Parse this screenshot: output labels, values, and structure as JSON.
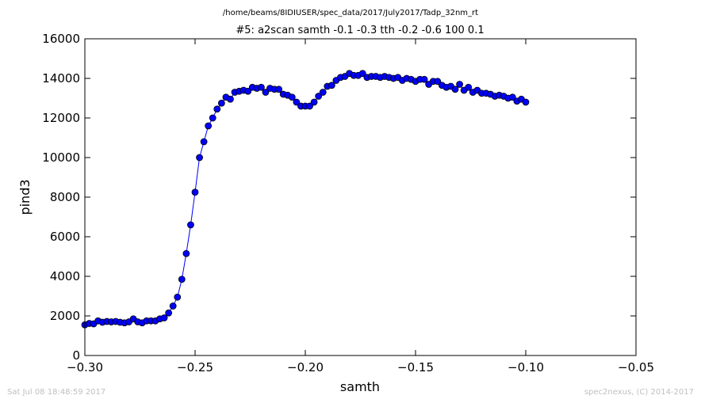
{
  "supertitle": "/home/beams/8IDIUSER/spec_data/2017/July2017/Tadp_32nm_rt",
  "footer_left": "Sat Jul 08 18:48:59 2017",
  "footer_right": "spec2nexus, (C) 2014-2017",
  "colors": {
    "series": "#0000ff",
    "axes": "#000000",
    "footer": "#bfbfbf"
  },
  "chart_data": {
    "type": "line",
    "title": "#5: a2scan  samth -0.1 -0.3  tth -0.2 -0.6  100 0.1",
    "xlabel": "samth",
    "ylabel": "pind3",
    "xlim": [
      -0.3,
      -0.05
    ],
    "ylim": [
      0,
      16000
    ],
    "xticks": [
      -0.3,
      -0.25,
      -0.2,
      -0.15,
      -0.1,
      -0.05
    ],
    "xtick_labels": [
      "−0.30",
      "−0.25",
      "−0.20",
      "−0.15",
      "−0.10",
      "−0.05"
    ],
    "yticks": [
      0,
      2000,
      4000,
      6000,
      8000,
      10000,
      12000,
      14000,
      16000
    ],
    "ytick_labels": [
      "0",
      "2000",
      "4000",
      "6000",
      "8000",
      "10000",
      "12000",
      "14000",
      "16000"
    ],
    "grid": false,
    "marker": "circle",
    "series": [
      {
        "x": [
          -0.3,
          -0.298,
          -0.296,
          -0.294,
          -0.292,
          -0.29,
          -0.288,
          -0.286,
          -0.284,
          -0.282,
          -0.28,
          -0.278,
          -0.276,
          -0.274,
          -0.272,
          -0.27,
          -0.268,
          -0.266,
          -0.264,
          -0.262,
          -0.26,
          -0.258,
          -0.256,
          -0.254,
          -0.252,
          -0.25,
          -0.248,
          -0.246,
          -0.244,
          -0.242,
          -0.24,
          -0.238,
          -0.236,
          -0.234,
          -0.232,
          -0.23,
          -0.228,
          -0.226,
          -0.224,
          -0.222,
          -0.22,
          -0.218,
          -0.216,
          -0.214,
          -0.212,
          -0.21,
          -0.208,
          -0.206,
          -0.204,
          -0.202,
          -0.2,
          -0.198,
          -0.196,
          -0.194,
          -0.192,
          -0.19,
          -0.188,
          -0.186,
          -0.184,
          -0.182,
          -0.18,
          -0.178,
          -0.176,
          -0.174,
          -0.172,
          -0.17,
          -0.168,
          -0.166,
          -0.164,
          -0.162,
          -0.16,
          -0.158,
          -0.156,
          -0.154,
          -0.152,
          -0.15,
          -0.148,
          -0.146,
          -0.144,
          -0.142,
          -0.14,
          -0.138,
          -0.136,
          -0.134,
          -0.132,
          -0.13,
          -0.128,
          -0.126,
          -0.124,
          -0.122,
          -0.12,
          -0.118,
          -0.116,
          -0.114,
          -0.112,
          -0.11,
          -0.108,
          -0.106,
          -0.104,
          -0.102,
          -0.1
        ],
        "y": [
          1550,
          1620,
          1600,
          1750,
          1680,
          1720,
          1700,
          1720,
          1680,
          1650,
          1700,
          1850,
          1700,
          1650,
          1750,
          1750,
          1750,
          1850,
          1900,
          2150,
          2500,
          2950,
          3850,
          5150,
          6600,
          8250,
          10000,
          10800,
          11600,
          12000,
          12450,
          12750,
          13050,
          12950,
          13300,
          13350,
          13400,
          13350,
          13550,
          13500,
          13550,
          13300,
          13500,
          13450,
          13450,
          13200,
          13150,
          13050,
          12800,
          12600,
          12600,
          12600,
          12800,
          13100,
          13300,
          13600,
          13650,
          13900,
          14050,
          14100,
          14250,
          14150,
          14150,
          14250,
          14050,
          14100,
          14100,
          14050,
          14100,
          14050,
          14000,
          14050,
          13900,
          14000,
          13950,
          13850,
          13950,
          13950,
          13700,
          13850,
          13850,
          13650,
          13550,
          13600,
          13450,
          13700,
          13400,
          13550,
          13300,
          13400,
          13250,
          13250,
          13200,
          13100,
          13150,
          13100,
          13000,
          13050,
          12850,
          12950,
          12800
        ]
      }
    ]
  }
}
